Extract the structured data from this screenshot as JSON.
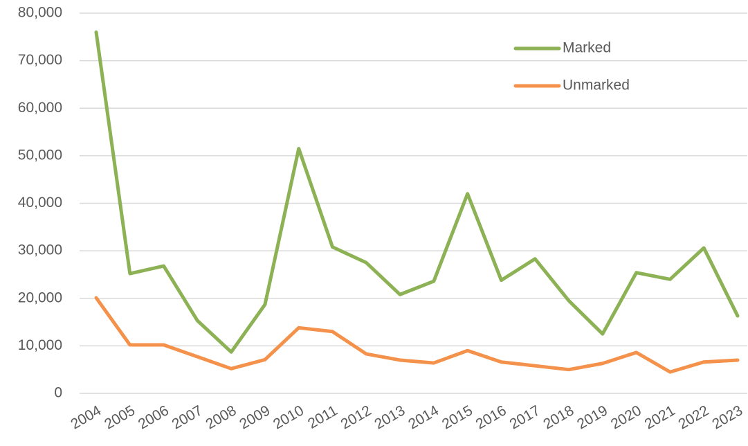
{
  "chart_data": {
    "type": "line",
    "categories": [
      "2004",
      "2005",
      "2006",
      "2007",
      "2008",
      "2009",
      "2010",
      "2011",
      "2012",
      "2013",
      "2014",
      "2015",
      "2016",
      "2017",
      "2018",
      "2019",
      "2020",
      "2021",
      "2022",
      "2023"
    ],
    "series": [
      {
        "name": "Marked",
        "color": "#8db255",
        "values": [
          76000,
          25200,
          26800,
          15300,
          8700,
          18700,
          51500,
          30800,
          27500,
          20800,
          23600,
          42000,
          23800,
          28300,
          19500,
          12500,
          25400,
          24000,
          30600,
          16300
        ]
      },
      {
        "name": "Unmarked",
        "color": "#f4914a",
        "values": [
          20100,
          10200,
          10200,
          7700,
          5200,
          7100,
          13800,
          13000,
          8300,
          7000,
          6400,
          9000,
          6600,
          5800,
          5000,
          6300,
          8600,
          4500,
          6600,
          7000
        ]
      }
    ],
    "ylim": [
      0,
      80000
    ],
    "yticks": [
      0,
      {
        "value": 10000,
        "label": "10,000"
      },
      {
        "value": 20000,
        "label": "20,000"
      },
      {
        "value": 30000,
        "label": "30,000"
      },
      {
        "value": 40000,
        "label": "40,000"
      },
      {
        "value": 50000,
        "label": "50,000"
      },
      {
        "value": 60000,
        "label": "60,000"
      },
      {
        "value": 70000,
        "label": "70,000"
      },
      {
        "value": 80000,
        "label": "80,000"
      }
    ],
    "grid": true
  }
}
